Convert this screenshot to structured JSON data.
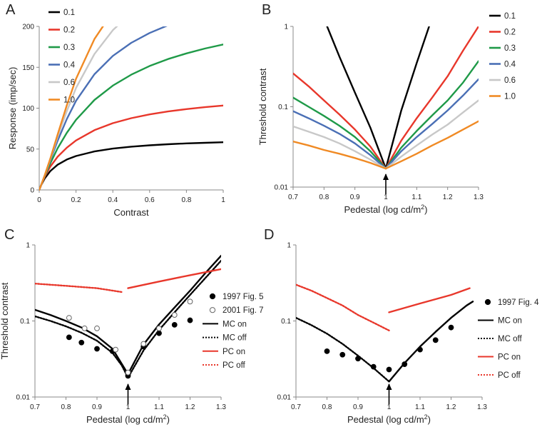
{
  "chart_data": [
    {
      "id": "A",
      "type": "line",
      "panel_label": "A",
      "xlabel": "Contrast",
      "ylabel": "Response (imp/sec)",
      "xscale": "linear",
      "yscale": "linear",
      "xlim": [
        0,
        1
      ],
      "ylim": [
        0,
        200
      ],
      "xticks": [
        0,
        0.2,
        0.4,
        0.6,
        0.8,
        1
      ],
      "xtick_labels": [
        "0",
        "0.2",
        "0.4",
        "0.6",
        "0.8",
        "1"
      ],
      "yticks": [
        0,
        50,
        100,
        150,
        200
      ],
      "ytick_labels": [
        "0",
        "50",
        "100",
        "150",
        "200"
      ],
      "grid": false,
      "legend_position": "top-left",
      "series": [
        {
          "name": "0.1",
          "color": "#000000",
          "dash": "",
          "x": [
            0,
            0.01,
            0.03,
            0.06,
            0.1,
            0.15,
            0.2,
            0.3,
            0.4,
            0.5,
            0.6,
            0.7,
            0.8,
            0.9,
            1
          ],
          "y": [
            0,
            5.7,
            14.1,
            23.1,
            30.8,
            37.2,
            41.5,
            47.1,
            50.6,
            52.9,
            54.6,
            55.9,
            56.9,
            57.6,
            58.3
          ]
        },
        {
          "name": "0.2",
          "color": "#e8372b",
          "dash": "",
          "x": [
            0,
            0.01,
            0.03,
            0.06,
            0.1,
            0.15,
            0.2,
            0.3,
            0.4,
            0.5,
            0.6,
            0.7,
            0.8,
            0.9,
            1
          ],
          "y": [
            0,
            5.7,
            16.1,
            28.5,
            40.6,
            51.7,
            60.5,
            73.1,
            81.7,
            87.8,
            92.4,
            96.0,
            98.9,
            101.2,
            103.2
          ]
        },
        {
          "name": "0.3",
          "color": "#1f9a48",
          "dash": "",
          "x": [
            0,
            0.01,
            0.03,
            0.06,
            0.1,
            0.15,
            0.2,
            0.3,
            0.4,
            0.5,
            0.6,
            0.7,
            0.8,
            0.9,
            1
          ],
          "y": [
            0,
            5.7,
            16.9,
            32.4,
            51.0,
            69.9,
            85.8,
            110.0,
            127.6,
            141.0,
            151.6,
            160.1,
            167.0,
            172.9,
            177.9
          ]
        },
        {
          "name": "0.4",
          "color": "#4a6fb5",
          "dash": "",
          "x": [
            0,
            0.01,
            0.03,
            0.06,
            0.1,
            0.15,
            0.2,
            0.3,
            0.4,
            0.5,
            0.6,
            0.7,
            0.8,
            0.9,
            1
          ],
          "y": [
            0,
            5.8,
            17.6,
            36.1,
            60.2,
            86.7,
            109.0,
            141.5,
            163.9,
            179.9,
            192.0,
            201.4,
            208.9,
            215.0,
            220.1
          ]
        },
        {
          "name": "0.6",
          "color": "#c8c8c8",
          "dash": "",
          "x": [
            0,
            0.01,
            0.03,
            0.06,
            0.1,
            0.15,
            0.2,
            0.3,
            0.4,
            0.5,
            0.6
          ],
          "y": [
            0,
            5.8,
            17.9,
            37.4,
            65.1,
            96.3,
            124.7,
            166.2,
            195.4,
            216.5,
            232.2
          ]
        },
        {
          "name": "1.0",
          "color": "#f08a24",
          "dash": "",
          "x": [
            0,
            0.01,
            0.03,
            0.06,
            0.1,
            0.15,
            0.2,
            0.3,
            0.4,
            0.45
          ],
          "y": [
            0,
            5.8,
            17.9,
            38.2,
            67.7,
            103.6,
            135.9,
            184.5,
            218.0,
            231.0
          ]
        }
      ]
    },
    {
      "id": "B",
      "type": "line",
      "panel_label": "B",
      "xlabel": "Pedestal (log cd/m²)",
      "ylabel": "Threshold contrast",
      "xscale": "linear",
      "yscale": "log",
      "xlim": [
        0.7,
        1.3
      ],
      "ylim": [
        0.01,
        1
      ],
      "xticks": [
        0.7,
        0.8,
        0.9,
        1,
        1.1,
        1.2,
        1.3
      ],
      "xtick_labels": [
        "0.7",
        "0.8",
        "0.9",
        "1",
        "1.1",
        "1.2",
        "1.3"
      ],
      "yticks": [
        0.01,
        0.1,
        1
      ],
      "ytick_labels": [
        "0.01",
        "0.1",
        "1"
      ],
      "grid": false,
      "legend_position": "top-right",
      "annotation_arrow_x": 1,
      "series": [
        {
          "name": "0.1",
          "color": "#000000",
          "dash": "",
          "x": [
            0.81,
            0.85,
            0.9,
            0.95,
            1.0,
            1.05,
            1.1,
            1.14
          ],
          "y": [
            1.0,
            0.42,
            0.15,
            0.055,
            0.017,
            0.09,
            0.35,
            1.0
          ]
        },
        {
          "name": "0.2",
          "color": "#e8372b",
          "dash": "",
          "x": [
            0.7,
            0.75,
            0.8,
            0.85,
            0.9,
            0.95,
            1.0,
            1.05,
            1.1,
            1.15,
            1.2,
            1.25,
            1.3
          ],
          "y": [
            0.26,
            0.18,
            0.12,
            0.08,
            0.052,
            0.032,
            0.017,
            0.038,
            0.072,
            0.13,
            0.24,
            0.5,
            1.0
          ]
        },
        {
          "name": "0.3",
          "color": "#1f9a48",
          "dash": "",
          "x": [
            0.7,
            0.75,
            0.8,
            0.85,
            0.9,
            0.95,
            1.0,
            1.05,
            1.1,
            1.15,
            1.2,
            1.25,
            1.3
          ],
          "y": [
            0.13,
            0.1,
            0.077,
            0.058,
            0.042,
            0.028,
            0.017,
            0.031,
            0.05,
            0.078,
            0.12,
            0.2,
            0.37
          ]
        },
        {
          "name": "0.4",
          "color": "#4a6fb5",
          "dash": "",
          "x": [
            0.7,
            0.75,
            0.8,
            0.85,
            0.9,
            0.95,
            1.0,
            1.05,
            1.1,
            1.15,
            1.2,
            1.25,
            1.3
          ],
          "y": [
            0.088,
            0.072,
            0.058,
            0.046,
            0.035,
            0.025,
            0.017,
            0.028,
            0.042,
            0.061,
            0.09,
            0.138,
            0.22
          ]
        },
        {
          "name": "0.6",
          "color": "#c8c8c8",
          "dash": "",
          "x": [
            0.7,
            0.75,
            0.8,
            0.85,
            0.9,
            0.95,
            1.0,
            1.05,
            1.1,
            1.15,
            1.2,
            1.25,
            1.3
          ],
          "y": [
            0.057,
            0.049,
            0.042,
            0.035,
            0.028,
            0.022,
            0.017,
            0.024,
            0.033,
            0.045,
            0.06,
            0.085,
            0.12
          ]
        },
        {
          "name": "1.0",
          "color": "#f08a24",
          "dash": "",
          "x": [
            0.7,
            0.75,
            0.8,
            0.85,
            0.9,
            0.95,
            1.0,
            1.05,
            1.1,
            1.15,
            1.2,
            1.25,
            1.3
          ],
          "y": [
            0.037,
            0.033,
            0.029,
            0.026,
            0.023,
            0.02,
            0.017,
            0.021,
            0.026,
            0.033,
            0.041,
            0.052,
            0.066
          ]
        }
      ]
    },
    {
      "id": "C",
      "type": "line",
      "panel_label": "C",
      "xlabel": "Pedestal (log cd/m²)",
      "ylabel": "Threshold contrast",
      "xscale": "linear",
      "yscale": "log",
      "xlim": [
        0.7,
        1.3
      ],
      "ylim": [
        0.01,
        1
      ],
      "xticks": [
        0.7,
        0.8,
        0.9,
        1,
        1.1,
        1.2,
        1.3
      ],
      "xtick_labels": [
        "0.7",
        "0.8",
        "0.9",
        "1",
        "1.1",
        "1.2",
        "1.3"
      ],
      "yticks": [
        0.01,
        0.1,
        1
      ],
      "ytick_labels": [
        "0.01",
        "0.1",
        "1"
      ],
      "grid": false,
      "legend_position": "right",
      "annotation_arrow_x": 1,
      "series": [
        {
          "name": "MC on",
          "color": "#000000",
          "dash": "",
          "x": [
            0.7,
            0.75,
            0.8,
            0.85,
            0.9,
            0.95,
            1.0,
            1.05,
            1.1,
            1.15,
            1.2,
            1.25,
            1.3
          ],
          "y": [
            0.14,
            0.12,
            0.1,
            0.082,
            0.063,
            0.043,
            0.02,
            0.049,
            0.09,
            0.15,
            0.25,
            0.43,
            0.72
          ]
        },
        {
          "name": "MC off",
          "color": "#000000",
          "dash": "2,2",
          "x": [
            0.7,
            0.75,
            0.8,
            0.85,
            0.9,
            0.95,
            0.98,
            1.0,
            1.05,
            1.1,
            1.15,
            1.2,
            1.25,
            1.3
          ],
          "y": [
            0.115,
            0.1,
            0.085,
            0.07,
            0.055,
            0.038,
            0.026,
            0.018,
            0.041,
            0.076,
            0.13,
            0.22,
            0.37,
            0.62
          ]
        },
        {
          "name": "PC on",
          "color": "#e8372b",
          "dash": "",
          "x": [
            1.0,
            1.1,
            1.2,
            1.3
          ],
          "y": [
            0.27,
            0.33,
            0.4,
            0.48
          ]
        },
        {
          "name": "PC off",
          "color": "#e8372b",
          "dash": "2,2",
          "x": [
            0.7,
            0.8,
            0.9,
            0.98
          ],
          "y": [
            0.31,
            0.29,
            0.27,
            0.24
          ]
        },
        {
          "name": "1997 Fig. 5",
          "type": "scatter",
          "marker": "filled-circle",
          "color": "#000000",
          "x": [
            0.81,
            0.85,
            0.9,
            0.95,
            1.0,
            1.05,
            1.1,
            1.15,
            1.2
          ],
          "y": [
            0.061,
            0.052,
            0.043,
            0.04,
            0.019,
            0.046,
            0.069,
            0.089,
            0.102
          ]
        },
        {
          "name": "2001 Fig. 7",
          "type": "scatter",
          "marker": "open-circle",
          "color": "#000000",
          "x": [
            0.81,
            0.86,
            0.9,
            0.96,
            1.0,
            1.05,
            1.1,
            1.15,
            1.2
          ],
          "y": [
            0.11,
            0.08,
            0.08,
            0.042,
            0.021,
            0.05,
            0.08,
            0.12,
            0.18
          ]
        }
      ]
    },
    {
      "id": "D",
      "type": "line",
      "panel_label": "D",
      "xlabel": "Pedestal (log cd/m²)",
      "ylabel": "",
      "xscale": "linear",
      "yscale": "log",
      "xlim": [
        0.7,
        1.3
      ],
      "ylim": [
        0.01,
        1
      ],
      "xticks": [
        0.7,
        0.8,
        0.9,
        1,
        1.1,
        1.2,
        1.3
      ],
      "xtick_labels": [
        "0.7",
        "0.8",
        "0.9",
        "1",
        "1.1",
        "1.2",
        "1.3"
      ],
      "yticks": [
        0.01,
        0.1,
        1
      ],
      "ytick_labels": [
        "0.01",
        "0.1",
        "1"
      ],
      "grid": false,
      "legend_position": "right",
      "annotation_arrow_x": 1,
      "series": [
        {
          "name": "MC on",
          "color": "#000000",
          "dash": "",
          "x": [
            1.0,
            1.05,
            1.1,
            1.15,
            1.2,
            1.25,
            1.27
          ],
          "y": [
            0.016,
            0.028,
            0.046,
            0.072,
            0.11,
            0.16,
            0.18
          ]
        },
        {
          "name": "MC off",
          "color": "#000000",
          "dash": "2,2",
          "x": [
            0.7,
            0.75,
            0.8,
            0.85,
            0.9,
            0.95,
            1.0
          ],
          "y": [
            0.11,
            0.088,
            0.068,
            0.05,
            0.035,
            0.024,
            0.016
          ]
        },
        {
          "name": "PC on",
          "color": "#e8372b",
          "dash": "",
          "x": [
            1.0,
            1.1,
            1.2,
            1.26
          ],
          "y": [
            0.13,
            0.17,
            0.22,
            0.27
          ]
        },
        {
          "name": "PC off",
          "color": "#e8372b",
          "dash": "2,2",
          "x": [
            0.7,
            0.75,
            0.8,
            0.85,
            0.9,
            0.95,
            1.0
          ],
          "y": [
            0.3,
            0.25,
            0.2,
            0.16,
            0.12,
            0.095,
            0.075
          ]
        },
        {
          "name": "1997 Fig. 4",
          "type": "scatter",
          "marker": "filled-circle",
          "color": "#000000",
          "x": [
            0.8,
            0.85,
            0.9,
            0.95,
            1.0,
            1.05,
            1.1,
            1.15,
            1.2
          ],
          "y": [
            0.04,
            0.036,
            0.032,
            0.025,
            0.023,
            0.027,
            0.042,
            0.056,
            0.082
          ]
        }
      ]
    }
  ]
}
